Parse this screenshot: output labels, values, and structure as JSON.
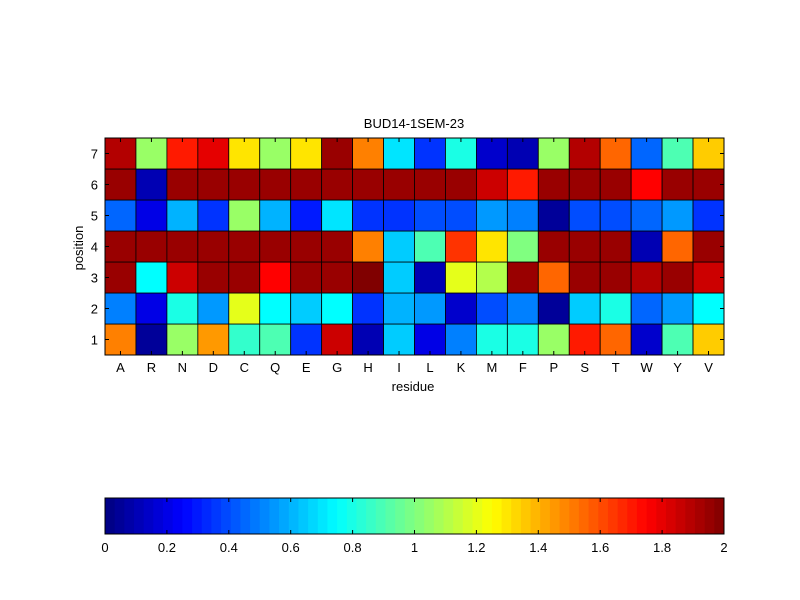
{
  "chart_data": {
    "type": "heatmap",
    "title": "BUD14-1SEM-23",
    "xlabel": "residue",
    "ylabel": "position",
    "x_categories": [
      "A",
      "R",
      "N",
      "D",
      "C",
      "Q",
      "E",
      "G",
      "H",
      "I",
      "L",
      "K",
      "M",
      "F",
      "P",
      "S",
      "T",
      "W",
      "Y",
      "V"
    ],
    "y_categories": [
      "1",
      "2",
      "3",
      "4",
      "5",
      "6",
      "7"
    ],
    "values": [
      [
        1.5,
        0.05,
        1.05,
        1.45,
        0.85,
        0.9,
        0.35,
        1.85,
        0.1,
        0.65,
        0.2,
        0.5,
        0.8,
        0.8,
        1.05,
        1.7,
        1.55,
        0.15,
        0.9,
        1.35
      ],
      [
        0.5,
        0.2,
        0.8,
        0.55,
        1.2,
        0.75,
        0.65,
        0.75,
        0.35,
        0.6,
        0.55,
        0.15,
        0.4,
        0.5,
        0.05,
        0.65,
        0.8,
        0.45,
        0.55,
        0.75
      ],
      [
        1.95,
        0.75,
        1.85,
        1.95,
        1.95,
        1.75,
        1.95,
        1.95,
        2.0,
        0.65,
        0.1,
        1.2,
        1.1,
        1.95,
        1.55,
        1.95,
        1.95,
        1.9,
        1.95,
        1.85
      ],
      [
        1.95,
        1.95,
        1.95,
        1.95,
        1.95,
        1.95,
        1.95,
        1.95,
        1.5,
        0.65,
        0.9,
        1.65,
        1.3,
        1.0,
        1.95,
        1.95,
        1.95,
        0.1,
        1.55,
        1.95
      ],
      [
        0.45,
        0.2,
        0.6,
        0.35,
        1.05,
        0.6,
        0.3,
        0.7,
        0.35,
        0.35,
        0.4,
        0.4,
        0.55,
        0.5,
        0.05,
        0.4,
        0.4,
        0.45,
        0.55,
        0.35
      ],
      [
        1.95,
        0.1,
        1.95,
        1.95,
        1.95,
        1.95,
        1.95,
        1.95,
        1.95,
        1.95,
        1.95,
        1.95,
        1.85,
        1.7,
        1.95,
        1.95,
        1.95,
        1.75,
        1.95,
        1.95
      ],
      [
        1.9,
        1.05,
        1.7,
        1.8,
        1.3,
        1.05,
        1.3,
        1.95,
        1.5,
        0.7,
        0.35,
        0.8,
        0.15,
        0.1,
        1.05,
        1.9,
        1.55,
        0.45,
        0.9,
        1.35
      ]
    ],
    "colorbar": {
      "min": 0,
      "max": 2,
      "ticks": [
        0,
        0.2,
        0.4,
        0.6,
        0.8,
        1,
        1.2,
        1.4,
        1.6,
        1.8,
        2
      ],
      "tick_labels": [
        "0",
        "0.2",
        "0.4",
        "0.6",
        "0.8",
        "1",
        "1.2",
        "1.4",
        "1.6",
        "1.8",
        "2"
      ],
      "colormap": "jet",
      "placement": "bottom"
    },
    "grid": false
  }
}
